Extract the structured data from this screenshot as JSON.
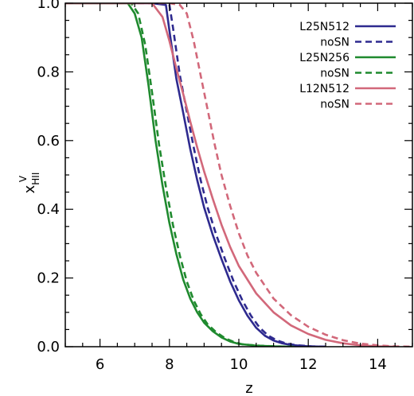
{
  "chart_data": {
    "type": "line",
    "xlabel": "z",
    "ylabel_main": "x",
    "ylabel_sup": "V",
    "ylabel_sub": "HII",
    "xlim": [
      5.0,
      15.0
    ],
    "ylim": [
      0.0,
      1.0
    ],
    "xticks": [
      6,
      8,
      10,
      12,
      14
    ],
    "xtick_labels": [
      "6",
      "8",
      "10",
      "12",
      "14"
    ],
    "yticks": [
      0.0,
      0.2,
      0.4,
      0.6,
      0.8,
      1.0
    ],
    "ytick_labels": [
      "0.0",
      "0.2",
      "0.4",
      "0.6",
      "0.8",
      "1.0"
    ],
    "legend_placement": "top-right",
    "series": [
      {
        "name": "L25N512",
        "color": "#2e2a8f",
        "dash": "solid",
        "x": [
          5.0,
          7.5,
          7.9,
          8.0,
          8.2,
          8.4,
          8.6,
          8.8,
          9.0,
          9.25,
          9.5,
          9.75,
          10.0,
          10.25,
          10.5,
          10.75,
          11.0,
          11.25,
          11.5,
          12.0,
          12.5
        ],
        "y": [
          1.0,
          1.0,
          0.995,
          0.92,
          0.78,
          0.68,
          0.575,
          0.485,
          0.405,
          0.325,
          0.255,
          0.19,
          0.135,
          0.09,
          0.055,
          0.032,
          0.018,
          0.01,
          0.005,
          0.001,
          0.0
        ]
      },
      {
        "name": "noSN",
        "color": "#2e2a8f",
        "dash": "dashed",
        "x": [
          5.0,
          7.6,
          8.0,
          8.1,
          8.3,
          8.5,
          8.7,
          8.9,
          9.1,
          9.35,
          9.6,
          9.85,
          10.1,
          10.35,
          10.6,
          10.85,
          11.1,
          11.35,
          11.6,
          12.1,
          12.6
        ],
        "y": [
          1.0,
          1.0,
          0.995,
          0.93,
          0.79,
          0.685,
          0.58,
          0.485,
          0.405,
          0.325,
          0.255,
          0.19,
          0.135,
          0.09,
          0.055,
          0.032,
          0.018,
          0.01,
          0.005,
          0.001,
          0.0
        ]
      },
      {
        "name": "L25N256",
        "color": "#1f8a2e",
        "dash": "solid",
        "x": [
          5.0,
          6.8,
          7.0,
          7.2,
          7.4,
          7.6,
          7.8,
          8.0,
          8.2,
          8.4,
          8.6,
          8.8,
          9.0,
          9.25,
          9.5,
          9.75,
          10.0,
          10.5,
          11.0,
          11.5
        ],
        "y": [
          1.0,
          1.0,
          0.97,
          0.9,
          0.76,
          0.6,
          0.47,
          0.36,
          0.27,
          0.195,
          0.14,
          0.1,
          0.07,
          0.045,
          0.027,
          0.015,
          0.008,
          0.003,
          0.001,
          0.0
        ]
      },
      {
        "name": "noSN",
        "color": "#1f8a2e",
        "dash": "dashed",
        "x": [
          5.0,
          6.9,
          7.1,
          7.3,
          7.5,
          7.7,
          7.9,
          8.1,
          8.3,
          8.5,
          8.7,
          8.9,
          9.1,
          9.35,
          9.6,
          9.85,
          10.1,
          10.6,
          11.1,
          11.6
        ],
        "y": [
          1.0,
          1.0,
          0.97,
          0.88,
          0.74,
          0.59,
          0.465,
          0.355,
          0.265,
          0.19,
          0.135,
          0.095,
          0.065,
          0.042,
          0.025,
          0.014,
          0.007,
          0.003,
          0.001,
          0.0
        ]
      },
      {
        "name": "L12N512",
        "color": "#d2687a",
        "dash": "solid",
        "x": [
          5.0,
          7.5,
          7.8,
          8.0,
          8.2,
          8.4,
          8.6,
          8.8,
          9.0,
          9.25,
          9.5,
          9.75,
          10.0,
          10.5,
          11.0,
          11.5,
          12.0,
          12.5,
          13.0,
          13.5,
          14.0,
          14.5
        ],
        "y": [
          1.0,
          1.0,
          0.96,
          0.89,
          0.81,
          0.735,
          0.655,
          0.58,
          0.51,
          0.43,
          0.355,
          0.29,
          0.235,
          0.155,
          0.1,
          0.062,
          0.037,
          0.02,
          0.01,
          0.004,
          0.001,
          0.0
        ]
      },
      {
        "name": "noSN",
        "color": "#d2687a",
        "dash": "dashed",
        "x": [
          5.0,
          8.0,
          8.3,
          8.5,
          8.7,
          8.9,
          9.1,
          9.3,
          9.5,
          9.75,
          10.0,
          10.25,
          10.5,
          11.0,
          11.5,
          12.0,
          12.5,
          13.0,
          13.5,
          14.0,
          14.5,
          15.0
        ],
        "y": [
          1.0,
          1.0,
          0.995,
          0.97,
          0.89,
          0.79,
          0.69,
          0.59,
          0.5,
          0.41,
          0.33,
          0.265,
          0.215,
          0.14,
          0.092,
          0.058,
          0.035,
          0.019,
          0.009,
          0.004,
          0.001,
          0.0
        ]
      }
    ]
  }
}
